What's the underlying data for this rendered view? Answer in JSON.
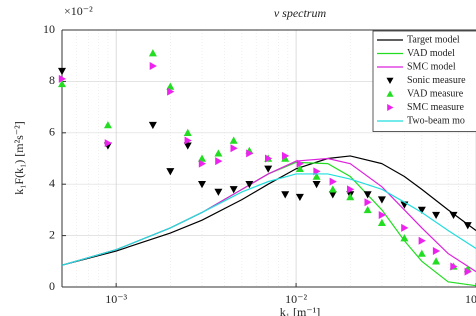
{
  "chart_data": {
    "type": "line",
    "title": "v spectrum",
    "y_label": "k₁F(k₁) [m²s⁻²]",
    "y_multiplier": "×10⁻²",
    "x_label": "k₁ [m⁻¹]",
    "xscale": "log",
    "grid": true,
    "legend": "upper right",
    "xlim": [
      0.0005,
      0.1
    ],
    "ylim": [
      0,
      10
    ],
    "xticks": [
      {
        "value": 0.001,
        "label": "10⁻³"
      },
      {
        "value": 0.01,
        "label": "10⁻²"
      },
      {
        "value": 0.1,
        "label": "10⁻¹"
      }
    ],
    "yticks": [
      0,
      2,
      4,
      6,
      8,
      10
    ],
    "series": [
      {
        "name": "Target model",
        "color": "#000000",
        "marker": "line",
        "x": [
          0.0005,
          0.001,
          0.002,
          0.003,
          0.005,
          0.007,
          0.01,
          0.015,
          0.02,
          0.03,
          0.04,
          0.05,
          0.07,
          0.1
        ],
        "values": [
          0.85,
          1.4,
          2.1,
          2.6,
          3.4,
          4.0,
          4.6,
          5.0,
          5.1,
          4.8,
          4.3,
          3.8,
          3.0,
          2.2
        ]
      },
      {
        "name": "VAD model",
        "color": "#22dd22",
        "marker": "line",
        "x": [
          0.0005,
          0.001,
          0.002,
          0.003,
          0.005,
          0.007,
          0.01,
          0.015,
          0.02,
          0.03,
          0.04,
          0.05,
          0.07,
          0.1
        ],
        "values": [
          0.85,
          1.45,
          2.3,
          2.9,
          3.8,
          4.4,
          4.85,
          4.8,
          4.3,
          3.0,
          1.8,
          1.0,
          0.2,
          0.05
        ]
      },
      {
        "name": "SMC model",
        "color": "#dd22dd",
        "marker": "line",
        "x": [
          0.0005,
          0.001,
          0.002,
          0.003,
          0.005,
          0.007,
          0.01,
          0.015,
          0.02,
          0.03,
          0.04,
          0.05,
          0.07,
          0.1
        ],
        "values": [
          0.85,
          1.45,
          2.3,
          2.9,
          3.8,
          4.4,
          4.9,
          5.0,
          4.8,
          3.9,
          3.0,
          2.3,
          1.3,
          0.6
        ]
      },
      {
        "name": "Sonic measure",
        "color": "#000000",
        "marker": "v",
        "x": [
          0.0005,
          0.0009,
          0.0016,
          0.002,
          0.0025,
          0.003,
          0.0037,
          0.0045,
          0.0055,
          0.007,
          0.0087,
          0.0105,
          0.013,
          0.016,
          0.02,
          0.025,
          0.03,
          0.04,
          0.05,
          0.06,
          0.075,
          0.09
        ],
        "values": [
          8.4,
          5.5,
          6.3,
          4.5,
          5.5,
          4.0,
          3.7,
          3.8,
          4.0,
          4.6,
          3.6,
          3.5,
          4.0,
          3.6,
          3.6,
          3.6,
          3.4,
          3.2,
          3.0,
          2.8,
          2.8,
          2.4
        ]
      },
      {
        "name": "VAD measure",
        "color": "#22dd22",
        "marker": "^",
        "x": [
          0.0005,
          0.0009,
          0.0016,
          0.002,
          0.0025,
          0.003,
          0.0037,
          0.0045,
          0.0055,
          0.007,
          0.0087,
          0.0105,
          0.013,
          0.016,
          0.02,
          0.025,
          0.03,
          0.04,
          0.05,
          0.06,
          0.075,
          0.09
        ],
        "values": [
          7.9,
          6.3,
          9.1,
          7.8,
          6.0,
          5.0,
          5.2,
          5.7,
          5.3,
          5.0,
          5.0,
          4.6,
          4.3,
          3.8,
          3.5,
          3.0,
          2.5,
          1.9,
          1.3,
          1.0,
          0.8,
          0.7
        ]
      },
      {
        "name": "SMC measure",
        "color": "#ee22ee",
        "marker": ">",
        "x": [
          0.0005,
          0.0009,
          0.0016,
          0.002,
          0.0025,
          0.003,
          0.0037,
          0.0045,
          0.0055,
          0.007,
          0.0087,
          0.0105,
          0.013,
          0.016,
          0.02,
          0.025,
          0.03,
          0.04,
          0.05,
          0.06,
          0.075,
          0.09
        ],
        "values": [
          8.1,
          5.6,
          8.6,
          7.6,
          5.7,
          4.8,
          4.9,
          5.4,
          5.2,
          5.0,
          5.1,
          4.8,
          4.5,
          4.1,
          3.8,
          3.3,
          2.8,
          2.3,
          1.8,
          1.4,
          0.8,
          0.6
        ]
      },
      {
        "name": "Two-beam mo",
        "color": "#22dddd",
        "marker": "line",
        "x": [
          0.0005,
          0.001,
          0.002,
          0.003,
          0.005,
          0.007,
          0.01,
          0.015,
          0.02,
          0.03,
          0.04,
          0.05,
          0.07,
          0.1
        ],
        "values": [
          0.85,
          1.45,
          2.3,
          2.9,
          3.7,
          4.1,
          4.4,
          4.4,
          4.2,
          3.8,
          3.3,
          2.9,
          2.2,
          1.5
        ]
      }
    ]
  }
}
